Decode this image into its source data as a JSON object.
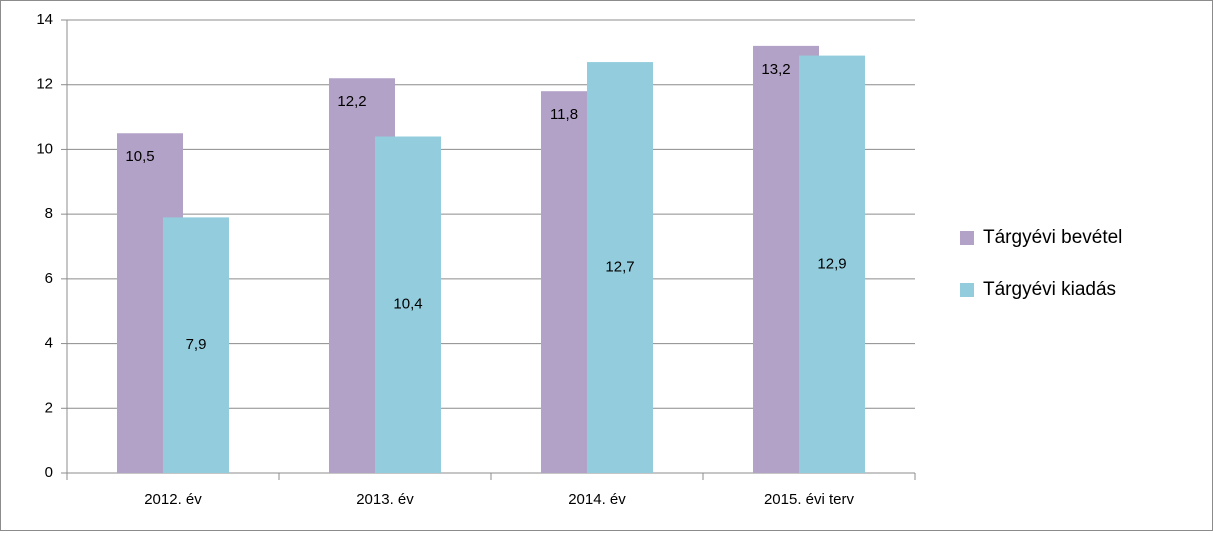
{
  "chart_data": {
    "type": "bar",
    "categories": [
      "2012. év",
      "2013. év",
      "2014. év",
      "2015. évi terv"
    ],
    "series": [
      {
        "name": "Tárgyévi bevétel",
        "color": "#b3a2c7",
        "values": [
          10.5,
          12.2,
          11.8,
          13.2
        ],
        "value_labels": [
          "10,5",
          "12,2",
          "11,8",
          "13,2"
        ]
      },
      {
        "name": "Tárgyévi kiadás",
        "color": "#93cddd",
        "values": [
          7.9,
          10.4,
          12.7,
          12.9
        ],
        "value_labels": [
          "7,9",
          "10,4",
          "12,7",
          "12,9"
        ]
      }
    ],
    "ylim": [
      0,
      14
    ],
    "yticks": [
      0,
      2,
      4,
      6,
      8,
      10,
      12,
      14
    ],
    "grid": true,
    "legend": "right"
  }
}
